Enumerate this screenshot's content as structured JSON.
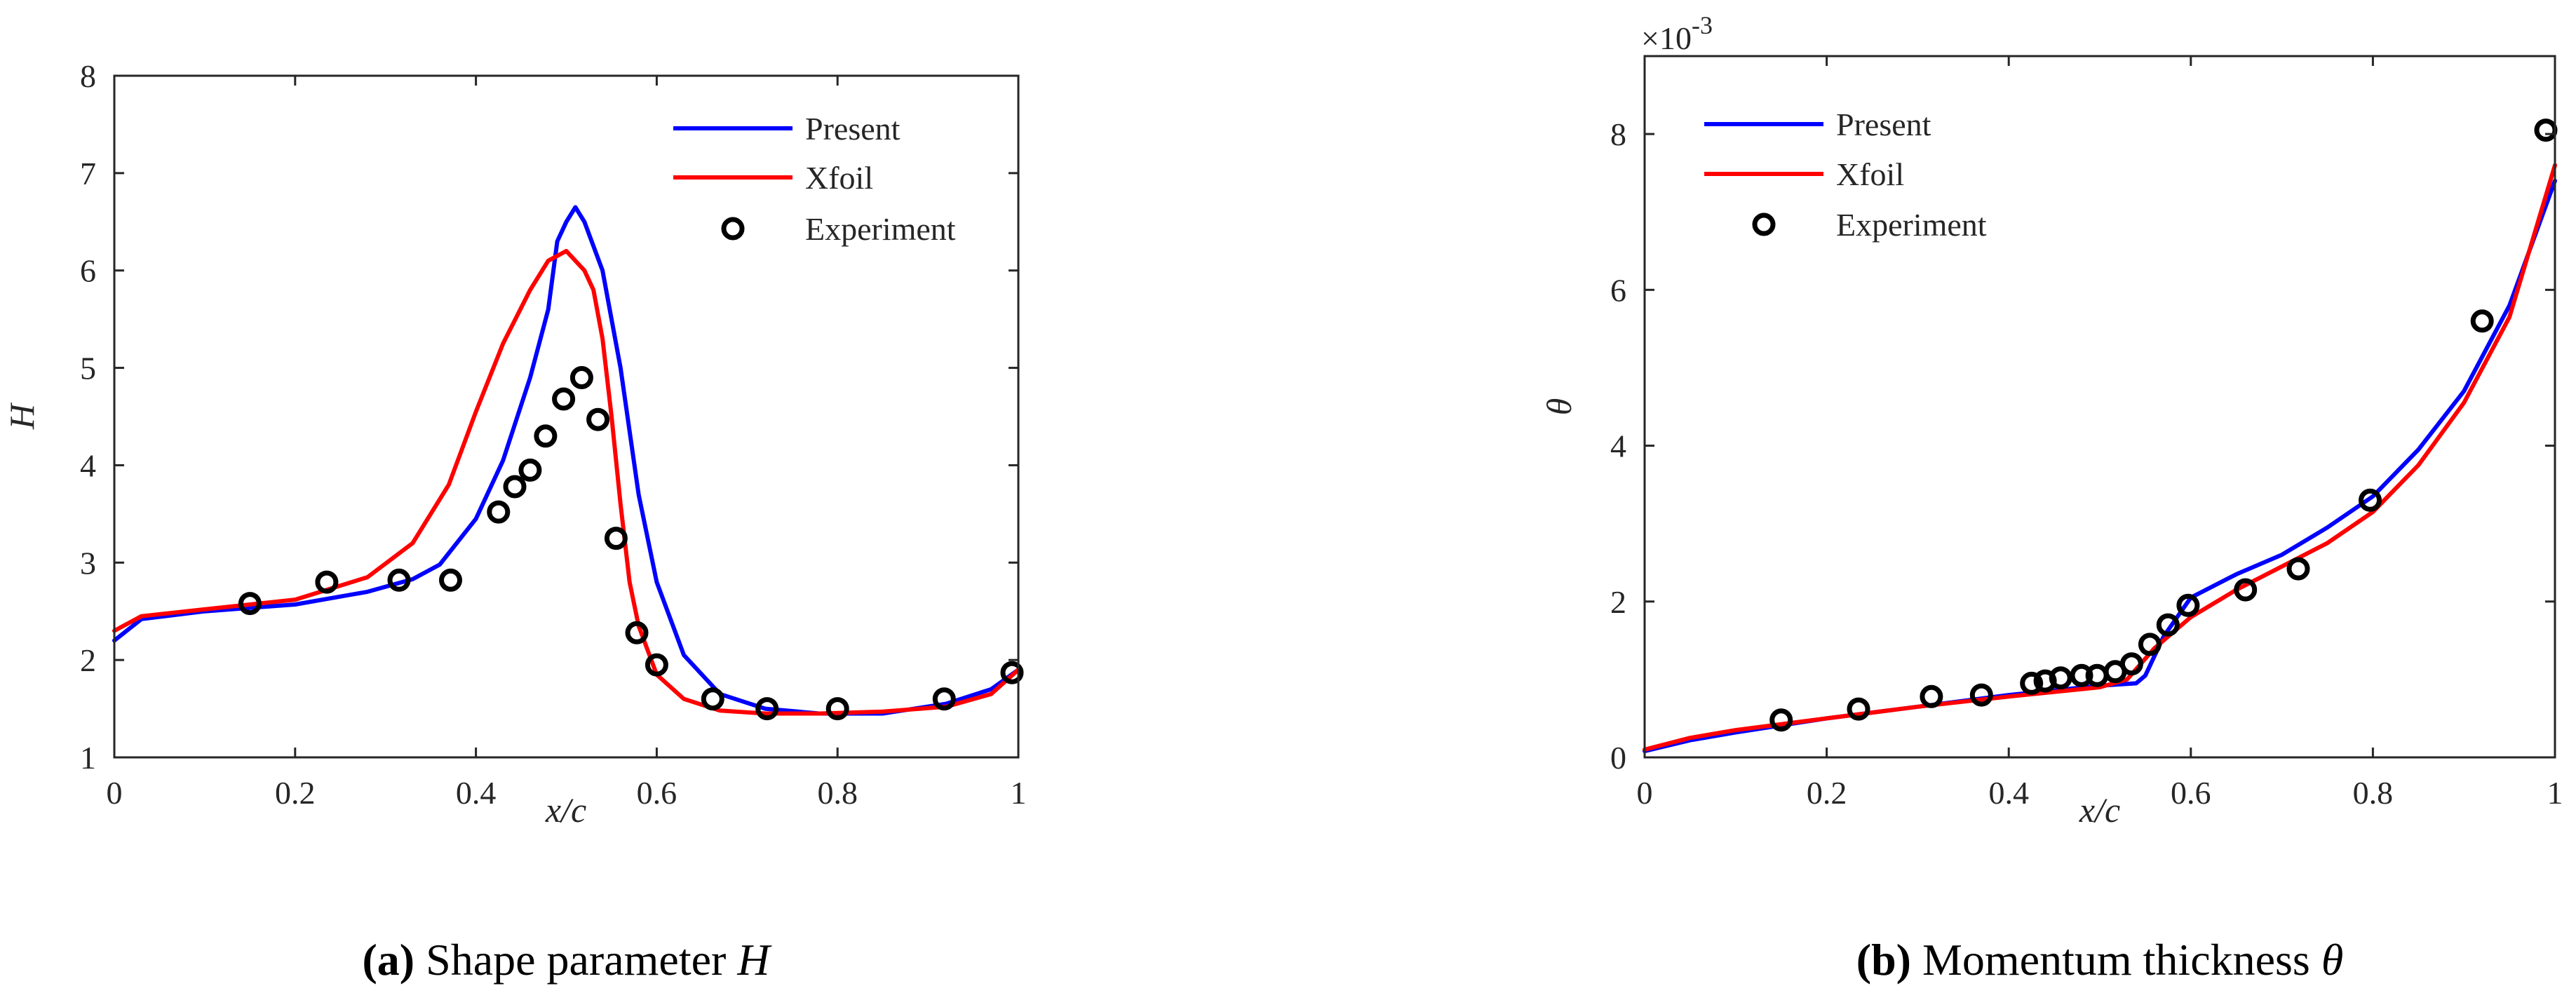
{
  "chart_data": [
    {
      "type": "line",
      "xlabel": "x/c",
      "ylabel": "H",
      "xlim": [
        0,
        1
      ],
      "ylim": [
        1,
        8
      ],
      "xticks": [
        "0",
        "0.2",
        "0.4",
        "0.6",
        "0.8",
        "1"
      ],
      "yticks": [
        "1",
        "2",
        "3",
        "4",
        "5",
        "6",
        "7",
        "8"
      ],
      "legend_position": "top-right",
      "caption_tag": "(a)",
      "caption_text": " Shape parameter ",
      "caption_symbol": "H",
      "series": [
        {
          "name": "Present",
          "color": "#0000ff",
          "style": "line",
          "x": [
            0,
            0.03,
            0.1,
            0.2,
            0.28,
            0.33,
            0.36,
            0.4,
            0.43,
            0.46,
            0.48,
            0.49,
            0.5,
            0.51,
            0.52,
            0.54,
            0.56,
            0.58,
            0.6,
            0.63,
            0.67,
            0.72,
            0.78,
            0.85,
            0.92,
            0.97,
            1.0
          ],
          "values": [
            2.2,
            2.42,
            2.5,
            2.57,
            2.7,
            2.83,
            2.98,
            3.45,
            4.05,
            4.9,
            5.6,
            6.3,
            6.5,
            6.65,
            6.5,
            6.0,
            5.0,
            3.7,
            2.8,
            2.05,
            1.65,
            1.5,
            1.45,
            1.45,
            1.55,
            1.7,
            1.9
          ]
        },
        {
          "name": "Xfoil",
          "color": "#ff0000",
          "style": "line",
          "x": [
            0,
            0.03,
            0.1,
            0.2,
            0.28,
            0.33,
            0.37,
            0.4,
            0.43,
            0.46,
            0.48,
            0.5,
            0.52,
            0.53,
            0.54,
            0.55,
            0.56,
            0.57,
            0.58,
            0.6,
            0.63,
            0.67,
            0.72,
            0.78,
            0.85,
            0.92,
            0.97,
            1.0
          ],
          "values": [
            2.3,
            2.45,
            2.52,
            2.62,
            2.85,
            3.2,
            3.8,
            4.55,
            5.25,
            5.8,
            6.1,
            6.2,
            6.0,
            5.8,
            5.3,
            4.5,
            3.6,
            2.8,
            2.35,
            1.85,
            1.6,
            1.48,
            1.45,
            1.45,
            1.47,
            1.52,
            1.65,
            1.9
          ]
        },
        {
          "name": "Experiment",
          "color": "#000000",
          "style": "marker",
          "x": [
            0.15,
            0.235,
            0.315,
            0.372,
            0.425,
            0.443,
            0.46,
            0.477,
            0.497,
            0.517,
            0.535,
            0.555,
            0.578,
            0.6,
            0.662,
            0.722,
            0.8,
            0.918,
            0.993
          ],
          "values": [
            2.58,
            2.8,
            2.82,
            2.82,
            3.52,
            3.78,
            3.95,
            4.3,
            4.68,
            4.9,
            4.47,
            3.25,
            2.28,
            1.95,
            1.6,
            1.5,
            1.5,
            1.6,
            1.87
          ]
        }
      ]
    },
    {
      "type": "line",
      "xlabel": "x/c",
      "ylabel": "θ",
      "exponent_label": "×10",
      "exponent_power": "-3",
      "xlim": [
        0,
        1
      ],
      "ylim": [
        0,
        9
      ],
      "xticks": [
        "0",
        "0.2",
        "0.4",
        "0.6",
        "0.8",
        "1"
      ],
      "yticks": [
        "0",
        "2",
        "4",
        "6",
        "8"
      ],
      "legend_position": "top-left",
      "caption_tag": "(b)",
      "caption_text": " Momentum thickness ",
      "caption_symbol": "θ",
      "series": [
        {
          "name": "Present",
          "color": "#0000ff",
          "style": "line",
          "x": [
            0,
            0.05,
            0.1,
            0.2,
            0.3,
            0.4,
            0.5,
            0.54,
            0.55,
            0.57,
            0.6,
            0.65,
            0.7,
            0.75,
            0.8,
            0.85,
            0.9,
            0.95,
            1.0
          ],
          "values": [
            0.08,
            0.22,
            0.32,
            0.5,
            0.65,
            0.8,
            0.92,
            0.95,
            1.05,
            1.55,
            2.05,
            2.35,
            2.6,
            2.95,
            3.35,
            3.95,
            4.7,
            5.8,
            7.4
          ]
        },
        {
          "name": "Xfoil",
          "color": "#ff0000",
          "style": "line",
          "x": [
            0,
            0.05,
            0.1,
            0.2,
            0.3,
            0.4,
            0.5,
            0.53,
            0.56,
            0.6,
            0.65,
            0.7,
            0.75,
            0.8,
            0.85,
            0.9,
            0.95,
            1.0
          ],
          "values": [
            0.1,
            0.25,
            0.35,
            0.5,
            0.65,
            0.78,
            0.9,
            1.0,
            1.4,
            1.8,
            2.15,
            2.45,
            2.75,
            3.15,
            3.75,
            4.55,
            5.65,
            7.6
          ]
        },
        {
          "name": "Experiment",
          "color": "#000000",
          "style": "marker",
          "x": [
            0.15,
            0.235,
            0.315,
            0.37,
            0.425,
            0.44,
            0.457,
            0.48,
            0.497,
            0.517,
            0.535,
            0.555,
            0.575,
            0.597,
            0.66,
            0.718,
            0.797,
            0.92,
            0.99
          ],
          "values": [
            0.48,
            0.62,
            0.78,
            0.8,
            0.95,
            0.98,
            1.02,
            1.05,
            1.05,
            1.1,
            1.2,
            1.45,
            1.7,
            1.95,
            2.15,
            2.42,
            3.3,
            5.6,
            8.05
          ]
        }
      ]
    }
  ]
}
